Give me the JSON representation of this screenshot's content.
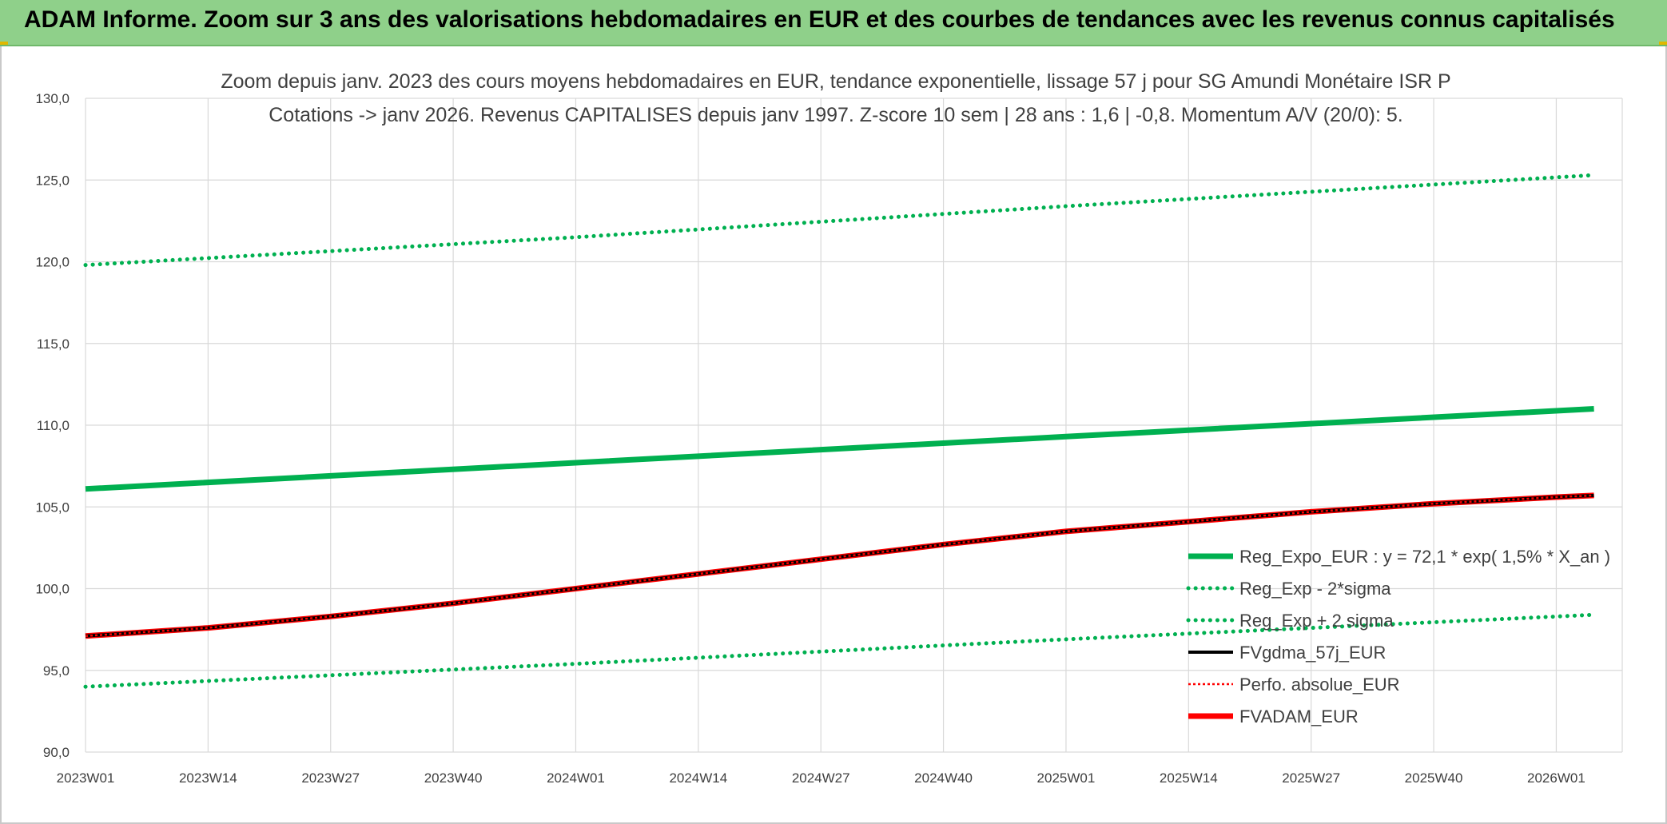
{
  "banner": {
    "title": "ADAM Informe. Zoom sur 3 ans des valorisations hebdomadaires en EUR et des courbes de tendances avec les revenus connus capitalisés"
  },
  "colors": {
    "banner": "#8fd08a",
    "green": "#00b050",
    "black": "#000000",
    "red": "#ff0000",
    "grid": "#d9d9d9"
  },
  "chart_data": {
    "type": "line",
    "title_lines": [
      "Zoom depuis janv. 2023 des cours moyens hebdomadaires en EUR, tendance exponentielle, lissage 57 j pour SG Amundi Monétaire ISR P",
      "Cotations -> janv 2026. Revenus CAPITALISES depuis janv 1997. Z-score 10 sem | 28 ans : 1,6 | -0,8. Momentum A/V (20/0): 5."
    ],
    "x_ticks": [
      "2023W01",
      "2023W14",
      "2023W27",
      "2023W40",
      "2024W01",
      "2024W14",
      "2024W27",
      "2024W40",
      "2025W01",
      "2025W14",
      "2025W27",
      "2025W40",
      "2026W01"
    ],
    "x_range": [
      "2023W01",
      "2026W05"
    ],
    "ylim": [
      90,
      130
    ],
    "y_ticks": [
      "90,0",
      "95,0",
      "100,0",
      "105,0",
      "110,0",
      "115,0",
      "120,0",
      "125,0",
      "130,0"
    ],
    "grid": true,
    "legend_position": "bottom-right",
    "series": [
      {
        "name": "Reg_Expo_EUR : y = 72,1 * exp( 1,5% *  X_an )",
        "style": "solid-thick",
        "color": "#00b050",
        "x": [
          "2023W01",
          "2024W01",
          "2025W01",
          "2026W05"
        ],
        "values": [
          106.1,
          107.7,
          109.3,
          111.0
        ]
      },
      {
        "name": "Reg_Exp - 2*sigma",
        "style": "dotted",
        "color": "#00b050",
        "x": [
          "2023W01",
          "2024W01",
          "2025W01",
          "2026W05"
        ],
        "values": [
          94.0,
          95.4,
          96.9,
          98.4
        ]
      },
      {
        "name": "Reg_Exp + 2 sigma",
        "style": "dotted",
        "color": "#00b050",
        "x": [
          "2023W01",
          "2024W01",
          "2025W01",
          "2026W05"
        ],
        "values": [
          119.8,
          121.5,
          123.4,
          125.3
        ]
      },
      {
        "name": "FVgdma_57j_EUR",
        "style": "solid",
        "color": "#000000",
        "x": [
          "2023W01",
          "2023W14",
          "2023W27",
          "2023W40",
          "2024W01",
          "2024W14",
          "2024W27",
          "2024W40",
          "2025W01",
          "2025W14",
          "2025W27",
          "2025W40",
          "2026W01",
          "2026W05"
        ],
        "values": [
          97.1,
          97.6,
          98.3,
          99.1,
          100.0,
          100.9,
          101.8,
          102.7,
          103.5,
          104.1,
          104.7,
          105.2,
          105.6,
          105.7
        ]
      },
      {
        "name": "Perfo. absolue_EUR",
        "style": "dotted-thin",
        "color": "#ff0000",
        "x": [
          "2023W01",
          "2023W14",
          "2023W27",
          "2023W40",
          "2024W01",
          "2024W14",
          "2024W27",
          "2024W40",
          "2025W01",
          "2025W14",
          "2025W27",
          "2025W40",
          "2026W01",
          "2026W05"
        ],
        "values": [
          97.1,
          97.6,
          98.3,
          99.1,
          100.0,
          100.9,
          101.8,
          102.7,
          103.5,
          104.1,
          104.7,
          105.2,
          105.6,
          105.7
        ]
      },
      {
        "name": "FVADAM_EUR",
        "style": "solid-thick",
        "color": "#ff0000",
        "x": [
          "2023W01",
          "2023W14",
          "2023W27",
          "2023W40",
          "2024W01",
          "2024W14",
          "2024W27",
          "2024W40",
          "2025W01",
          "2025W14",
          "2025W27",
          "2025W40",
          "2026W01",
          "2026W05"
        ],
        "values": [
          97.1,
          97.6,
          98.3,
          99.1,
          100.0,
          100.9,
          101.8,
          102.7,
          103.5,
          104.1,
          104.7,
          105.2,
          105.6,
          105.7
        ]
      }
    ]
  }
}
